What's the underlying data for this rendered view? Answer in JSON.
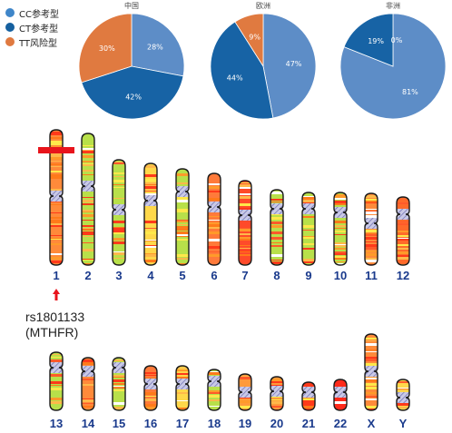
{
  "legend": [
    {
      "label": "CC参考型",
      "color": "#3f86c9"
    },
    {
      "label": "CT参考型",
      "color": "#15609f"
    },
    {
      "label": "TT风险型",
      "color": "#e07a40"
    }
  ],
  "chart_data": [
    {
      "type": "pie",
      "title": "中国",
      "slices": [
        {
          "genotype": "CC",
          "value": 28,
          "label": "28%",
          "color": "#5d8dc7"
        },
        {
          "genotype": "CT",
          "value": 42,
          "label": "42%",
          "color": "#1763a5"
        },
        {
          "genotype": "TT",
          "value": 30,
          "label": "30%",
          "color": "#e07a40"
        }
      ]
    },
    {
      "type": "pie",
      "title": "欧洲",
      "slices": [
        {
          "genotype": "CC",
          "value": 47,
          "label": "47%",
          "color": "#5d8dc7"
        },
        {
          "genotype": "CT",
          "value": 44,
          "label": "44%",
          "color": "#1763a5"
        },
        {
          "genotype": "TT",
          "value": 9,
          "label": "9%",
          "color": "#e07a40"
        }
      ]
    },
    {
      "type": "pie",
      "title": "非洲",
      "slices": [
        {
          "genotype": "CC",
          "value": 81,
          "label": "81%",
          "color": "#5d8dc7"
        },
        {
          "genotype": "CT",
          "value": 19,
          "label": "19%",
          "color": "#1763a5"
        },
        {
          "genotype": "TT",
          "value": 0,
          "label": "0%",
          "color": "#e07a40"
        }
      ]
    }
  ],
  "karyotype": {
    "row1": [
      "1",
      "2",
      "3",
      "4",
      "5",
      "6",
      "7",
      "8",
      "9",
      "10",
      "11",
      "12"
    ],
    "row2": [
      "13",
      "14",
      "15",
      "16",
      "17",
      "18",
      "19",
      "20",
      "21",
      "22",
      "X",
      "Y"
    ],
    "number_color": "#1a3a8c",
    "marker_color": "#e8141c",
    "marked_chromosome": "1"
  },
  "snp": {
    "id": "rs1801133",
    "gene": "(MTHFR)"
  }
}
